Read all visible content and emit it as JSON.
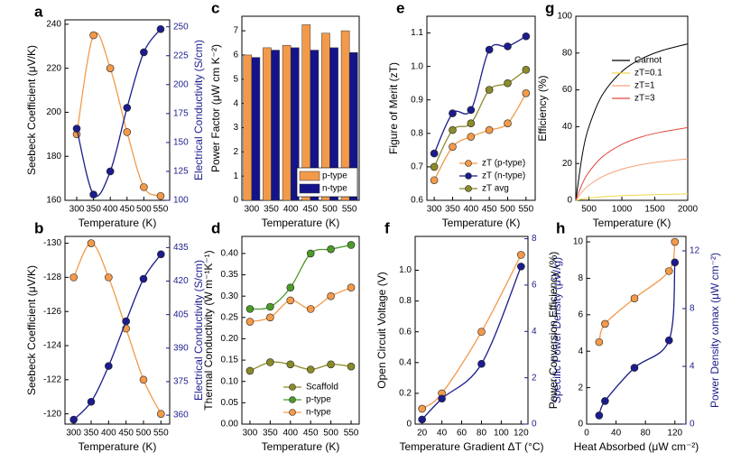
{
  "chart_data": [
    {
      "type": "line",
      "label": "a",
      "xlabel": "Temperature (K)",
      "ylabel": "Seebeck Coefficient (μV/K)",
      "y2label": "Electrical Conductivity (S/cm)",
      "x": [
        300,
        350,
        400,
        450,
        500,
        550
      ],
      "xlim": [
        265,
        577
      ],
      "xticks": [
        300,
        350,
        400,
        450,
        500,
        550
      ],
      "ylim": [
        160,
        242
      ],
      "yticks": [
        160,
        180,
        200,
        220,
        240
      ],
      "y2lim": [
        100,
        256
      ],
      "y2ticks": [
        100,
        125,
        150,
        175,
        200,
        225,
        250
      ],
      "markers": true,
      "series": [
        {
          "color": "#f39a4a",
          "values": [
            190,
            235,
            220,
            191,
            166,
            162
          ]
        },
        {
          "color": "#1c1c8c",
          "axis": "y2",
          "values": [
            162,
            105,
            125,
            180,
            228,
            248
          ]
        }
      ]
    },
    {
      "type": "bar",
      "label": "c",
      "xlabel": "Temperature (K)",
      "ylabel": "Power Factor (μW cm K⁻²)",
      "categories": [
        "300",
        "350",
        "400",
        "450",
        "500",
        "550"
      ],
      "ylim": [
        0,
        7.6
      ],
      "yticks": [
        0,
        1,
        2,
        3,
        4,
        5,
        6,
        7
      ],
      "legend": "lower right",
      "series": [
        {
          "name": "p-type",
          "color": "#f39a4a",
          "values": [
            6.0,
            6.3,
            6.4,
            7.25,
            6.9,
            7.0
          ]
        },
        {
          "name": "n-type",
          "color": "#14148a",
          "values": [
            5.9,
            6.2,
            6.3,
            6.2,
            6.3,
            6.1
          ]
        }
      ]
    },
    {
      "type": "line",
      "label": "e",
      "xlabel": "Temperature (K)",
      "ylabel": "Figure of Merit (zT)",
      "x": [
        300,
        350,
        400,
        450,
        500,
        550
      ],
      "xlim": [
        280,
        575
      ],
      "xticks": [
        300,
        350,
        400,
        450,
        500,
        550
      ],
      "ylim": [
        0.6,
        1.15
      ],
      "yticks": [
        0.6,
        0.7,
        0.8,
        0.9,
        {
          "value": 1.0,
          "label": "1.0"
        },
        1.1
      ],
      "markers": true,
      "legend": "lower right",
      "series": [
        {
          "name": "zT (p-type)",
          "color": "#f39a4a",
          "values": [
            0.66,
            0.76,
            0.79,
            0.81,
            0.83,
            0.92
          ]
        },
        {
          "name": "zT (n-type)",
          "color": "#1c1c8c",
          "values": [
            0.74,
            0.86,
            0.87,
            1.05,
            1.06,
            1.09
          ]
        },
        {
          "name": "zT avg",
          "color": "#8b8b2a",
          "values": [
            0.7,
            0.81,
            0.83,
            0.93,
            0.95,
            0.99
          ]
        }
      ]
    },
    {
      "type": "line",
      "label": "g",
      "xlabel": "Temperature (K)",
      "ylabel": "Efficiency (%)",
      "x": [
        300,
        400,
        500,
        700,
        1000,
        1300,
        1600,
        2000
      ],
      "xlim": [
        300,
        2000
      ],
      "xticks": [
        500,
        1000,
        1500,
        2000
      ],
      "ylim": [
        0,
        100
      ],
      "yticks": [
        0,
        20,
        40,
        60,
        80,
        100
      ],
      "markers": false,
      "legend": "center right",
      "series": [
        {
          "name": "Carnot",
          "color": "#000000",
          "values": [
            0,
            25,
            40,
            57.1,
            70,
            76.9,
            81.25,
            85
          ]
        },
        {
          "name": "zT=0.1",
          "color": "#f0d84a",
          "values": [
            0,
            0.7,
            1.2,
            1.9,
            2.5,
            2.9,
            3.2,
            3.5
          ]
        },
        {
          "name": "zT=1",
          "color": "#f5a37a",
          "values": [
            0,
            4.8,
            8.2,
            12.8,
            16.9,
            19.4,
            21.0,
            22.5
          ]
        },
        {
          "name": "zT=3",
          "color": "#e04a3a",
          "values": [
            0,
            9.1,
            15.4,
            23.5,
            30.4,
            34.5,
            37.1,
            39.5
          ]
        }
      ]
    },
    {
      "type": "line",
      "label": "b",
      "xlabel": "Temperature (K)",
      "ylabel": "Seebeck Coefficient (μV/K)",
      "y2label": "Electrical Conductivity (S/cm)",
      "x": [
        300,
        350,
        400,
        450,
        500,
        550
      ],
      "xlim": [
        275,
        575
      ],
      "xticks": [
        300,
        350,
        400,
        450,
        500,
        550
      ],
      "ylim": [
        -119.4,
        -130.4
      ],
      "yticks": [
        -120,
        -122,
        -124,
        -126,
        -128,
        -130
      ],
      "y2lim": [
        356,
        440
      ],
      "y2ticks": [
        360,
        375,
        390,
        405,
        420,
        435
      ],
      "markers": true,
      "series": [
        {
          "color": "#f39a4a",
          "values": [
            -128,
            -130,
            -128,
            -125,
            -122,
            -120
          ]
        },
        {
          "color": "#1c1c8c",
          "axis": "y2",
          "values": [
            358,
            366,
            382,
            402,
            421,
            432
          ]
        }
      ]
    },
    {
      "type": "line",
      "label": "d",
      "xlabel": "Temperature (K)",
      "ylabel": "Thermal Conductivity (W m⁻¹K⁻¹)",
      "x": [
        300,
        350,
        400,
        450,
        500,
        550
      ],
      "xlim": [
        280,
        570
      ],
      "xticks": [
        300,
        350,
        400,
        450,
        500,
        550
      ],
      "ylim": [
        0,
        0.44
      ],
      "yticks": [
        {
          "value": 0,
          "label": "0.00"
        },
        {
          "value": 0.05,
          "label": "0.05"
        },
        {
          "value": 0.1,
          "label": "0.10"
        },
        {
          "value": 0.15,
          "label": "0.15"
        },
        {
          "value": 0.2,
          "label": "0.20"
        },
        {
          "value": 0.25,
          "label": "0.25"
        },
        {
          "value": 0.3,
          "label": "0.30"
        },
        {
          "value": 0.35,
          "label": "0.35"
        },
        {
          "value": 0.4,
          "label": "0.40"
        }
      ],
      "markers": true,
      "legend": "lower right",
      "series": [
        {
          "name": "Scaffold",
          "color": "#8a8a2a",
          "values": [
            0.125,
            0.145,
            0.14,
            0.128,
            0.14,
            0.135
          ]
        },
        {
          "name": "p-type",
          "color": "#4c9a2a",
          "values": [
            0.27,
            0.275,
            0.32,
            0.4,
            0.41,
            0.42
          ]
        },
        {
          "name": "n-type",
          "color": "#f39a4a",
          "values": [
            0.24,
            0.25,
            0.29,
            0.27,
            0.3,
            0.32
          ]
        }
      ]
    },
    {
      "type": "line",
      "label": "f",
      "xlabel": "Temperature Gradient ΔT (°C)",
      "ylabel": "Open Circuit Voltage (V)",
      "y2label": "Specific Power Density (μW/g)",
      "x": [
        20,
        40,
        80,
        120
      ],
      "xlim": [
        13,
        127
      ],
      "xticks": [
        20,
        40,
        60,
        80,
        100,
        120
      ],
      "ylim": [
        0,
        1.22
      ],
      "yticks": [
        0,
        0.2,
        0.4,
        0.6,
        0.8,
        {
          "value": 1,
          "label": "1.0"
        }
      ],
      "y2lim": [
        0,
        8.1
      ],
      "y2ticks": [
        0,
        2,
        4,
        6,
        8
      ],
      "markers": true,
      "series": [
        {
          "color": "#f39a4a",
          "values": [
            0.1,
            0.2,
            0.6,
            1.1
          ]
        },
        {
          "color": "#1c1c8c",
          "axis": "y2",
          "values": [
            0.2,
            1.1,
            2.6,
            6.8
          ]
        }
      ]
    },
    {
      "type": "line",
      "label": "h",
      "xlabel": "Heat Absorbed (μW cm⁻²)",
      "ylabel": "Power Conversion Efficiency (%)",
      "y2label": "Power Density ωmax (μW cm⁻²)",
      "x": [
        17,
        25,
        65,
        112,
        120
      ],
      "xlim": [
        0,
        135
      ],
      "xticks": [
        0,
        40,
        80,
        120
      ],
      "ylim": [
        0,
        10.3
      ],
      "yticks": [
        0,
        2,
        4,
        6,
        8,
        10
      ],
      "y2lim": [
        0,
        13
      ],
      "y2ticks": [
        0,
        4,
        8,
        12
      ],
      "markers": true,
      "series": [
        {
          "color": "#f39a4a",
          "values": [
            4.5,
            5.5,
            6.9,
            8.4,
            10.0
          ]
        },
        {
          "color": "#1c1c8c",
          "axis": "y2",
          "values": [
            0.6,
            1.6,
            3.9,
            5.8,
            11.2
          ]
        }
      ]
    }
  ]
}
